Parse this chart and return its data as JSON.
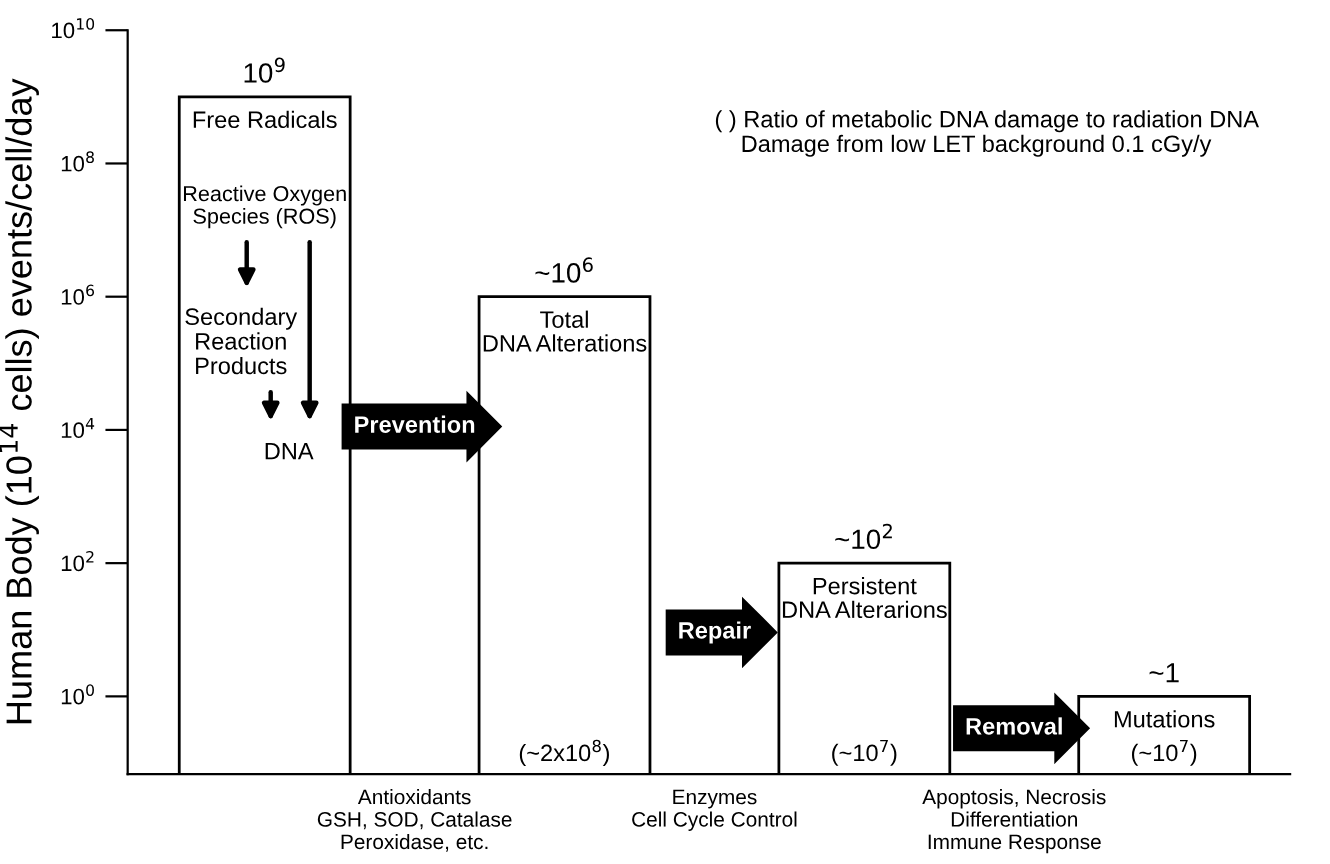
{
  "chart_data": {
    "type": "bar",
    "log": "y",
    "tick_labels": "y",
    "ylabel": "Human Body (10$^{14}$ cells) events/cell/day",
    "categories": [
      "Free Radicals",
      "Total\nDNA Alterations",
      "Persistent\nDNA Alterarions",
      "Mutations"
    ],
    "values": [
      1000000000,
      1000000,
      100,
      1
    ],
    "value_labels": [
      "10$^{9}$",
      "~10$^{6}$",
      "~10$^{2}$",
      "~1"
    ],
    "color": "#ffffff",
    "ylim": [
      0.068,
      10000000000
    ],
    "yticks": [
      {
        "value": 1,
        "label": "10$^{0}$"
      },
      {
        "value": 100,
        "label": "10$^{2}$"
      },
      {
        "value": 10000,
        "label": "10$^{4}$"
      },
      {
        "value": 1000000,
        "label": "10$^{6}$"
      },
      {
        "value": 100000000,
        "label": "10$^{8}$"
      },
      {
        "value": 10000000000,
        "label": "10$^{10}$"
      }
    ],
    "annotations": [
      "( ) Ratio of metabolic DNA damage to radiation DNA\n    Damage from low LET background 0.1 cGy/y",
      "Reactive Oxygen\nSpecies (ROS)",
      "Secondary\nReaction\nProducts",
      "DNA",
      "Prevention",
      "Repair",
      "Removal",
      "(~2x10$^{8}$)",
      "(~10$^{7}$)",
      "(~10$^{7}$)",
      "Antioxidants\nGSH, SOD, Catalase\nPeroxidase, etc.",
      "Enzymes\nCell Cycle Control",
      "Apoptosis, Necrosis\nDifferentiation\nImmune Response"
    ]
  }
}
